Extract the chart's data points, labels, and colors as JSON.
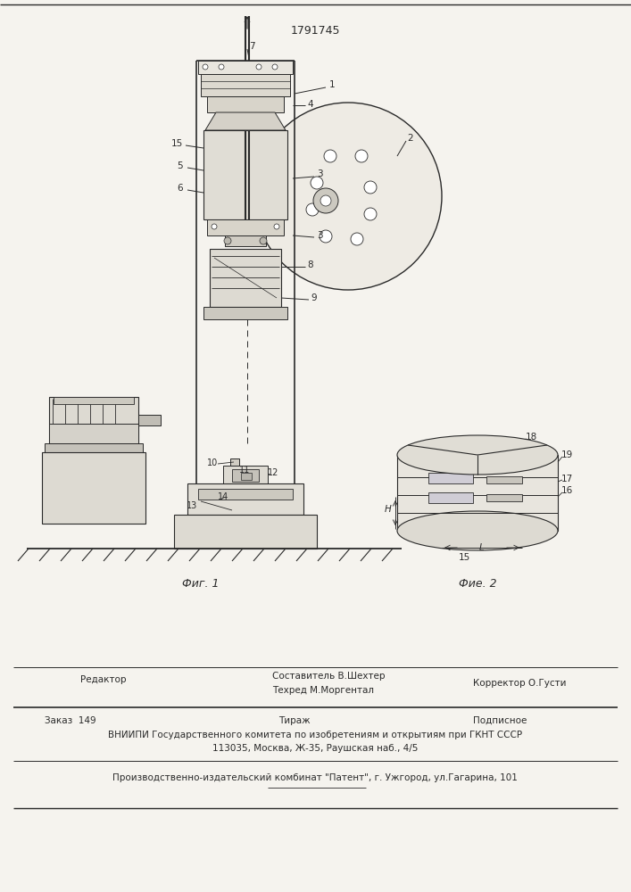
{
  "patent_number": "1791745",
  "bg_color": "#f5f3ee",
  "line_color": "#2a2a2a",
  "fig1_label": "Фиг. 1",
  "fig2_label": "Фие. 2",
  "editor_line": "Редактор",
  "composer_line": "Составитель В.Шехтер",
  "techred_line": "Техред М.Моргентал",
  "corrector_line": "Корректор О.Густи",
  "order_line": "Заказ  149",
  "tirazh_line": "Тираж",
  "podpisnoe_line": "Подписное",
  "vniiipi_line": "ВНИИПИ Государственного комитета по изобретениям и открытиям при ГКНТ СССР",
  "address_line": "113035, Москва, Ж-35, Раушская наб., 4/5",
  "kombinat_line": "Производственно-издательский комбинат \"Патент\", г. Ужгород, ул.Гагарина, 101"
}
